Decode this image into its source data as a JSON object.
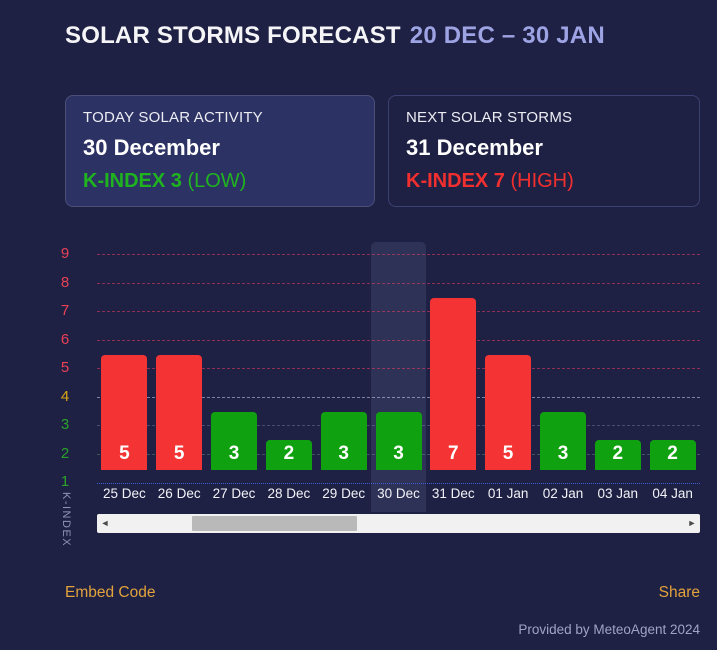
{
  "page": {
    "title": "SOLAR STORMS FORECAST",
    "title_range": "20 DEC – 30 JAN",
    "embed_link": "Embed Code",
    "share_link": "Share",
    "footer": "Provided by MeteoAgent 2024"
  },
  "cards": {
    "today": {
      "label": "TODAY SOLAR ACTIVITY",
      "date": "30 December",
      "kindex": "K-INDEX 3",
      "level": "(LOW)"
    },
    "next": {
      "label": "NEXT SOLAR STORMS",
      "date": "31 December",
      "kindex": "K-INDEX 7",
      "level": "(HIGH)"
    }
  },
  "chart_data": {
    "type": "bar",
    "title": "Solar storms forecast K-index by day",
    "categories": [
      "25 Dec",
      "26 Dec",
      "27 Dec",
      "28 Dec",
      "29 Dec",
      "30 Dec",
      "31 Dec",
      "01 Jan",
      "02 Jan",
      "03 Jan",
      "04 Jan"
    ],
    "values": [
      5,
      5,
      3,
      2,
      3,
      3,
      7,
      5,
      3,
      2,
      2
    ],
    "bar_colors": [
      "red",
      "red",
      "green",
      "green",
      "green",
      "green",
      "red",
      "red",
      "green",
      "green",
      "green"
    ],
    "highlighted_index": 5,
    "highlighted_category": "30 Dec",
    "xlabel": "",
    "ylabel": "K-INDEX",
    "yticks": [
      1,
      2,
      3,
      4,
      5,
      6,
      7,
      8,
      9
    ],
    "ylim": [
      0,
      9
    ],
    "grid": "horizontal-dashed",
    "legend": "none",
    "colors": {
      "bar_red": "#f43434",
      "bar_green": "#10a110",
      "tick_red": "#ea4155",
      "tick_gold": "#d9a516",
      "tick_green": "#2aa22a",
      "grid_red": "rgba(232,62,98,0.55)",
      "grid_white": "rgba(208,213,235,0.55)",
      "grid_faint": "rgba(168,174,208,0.30)",
      "grid_green": "rgba(110,185,135,0.35)",
      "grid_base_blue": "#3f5ecf"
    }
  },
  "scrollbar": {
    "left_arrow": "◄",
    "right_arrow": "►"
  }
}
